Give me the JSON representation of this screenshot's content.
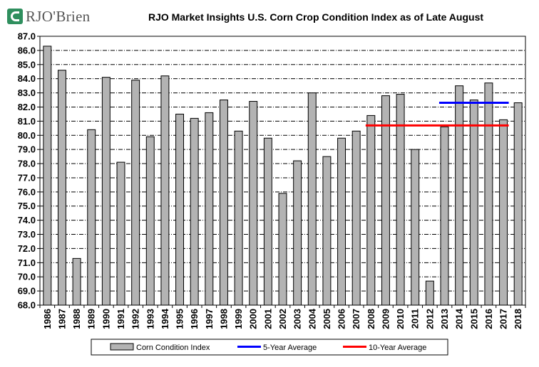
{
  "logo": {
    "text": "RJO'Brien",
    "icon": "rjo-logo-mark"
  },
  "chart_data": {
    "type": "bar",
    "title": "RJO Market Insights U.S. Corn Crop Condition Index as of Late August",
    "xlabel": "",
    "ylabel": "",
    "ylim": [
      68.0,
      87.0
    ],
    "y_ticks": [
      "68.0",
      "69.0",
      "70.0",
      "71.0",
      "72.0",
      "73.0",
      "74.0",
      "75.0",
      "76.0",
      "77.0",
      "78.0",
      "79.0",
      "80.0",
      "81.0",
      "82.0",
      "83.0",
      "84.0",
      "85.0",
      "86.0",
      "87.0"
    ],
    "categories": [
      "1986",
      "1987",
      "1988",
      "1989",
      "1990",
      "1991",
      "1992",
      "1993",
      "1994",
      "1995",
      "1996",
      "1997",
      "1998",
      "1999",
      "2000",
      "2001",
      "2002",
      "2003",
      "2004",
      "2005",
      "2006",
      "2007",
      "2008",
      "2009",
      "2010",
      "2011",
      "2012",
      "2013",
      "2014",
      "2015",
      "2016",
      "2017",
      "2018"
    ],
    "series": [
      {
        "name": "Corn Condition Index",
        "color": "#b3b3b3",
        "values": [
          86.3,
          84.6,
          71.3,
          80.4,
          84.1,
          78.1,
          83.9,
          79.9,
          84.2,
          81.5,
          81.2,
          81.6,
          82.5,
          80.3,
          82.4,
          79.8,
          75.9,
          78.2,
          83.0,
          78.5,
          79.8,
          80.3,
          81.4,
          82.8,
          82.9,
          79.0,
          69.7,
          80.6,
          83.5,
          82.5,
          83.7,
          81.1,
          82.3
        ]
      }
    ],
    "averages": [
      {
        "name": "5-Year Average",
        "color": "#0000ff",
        "value": 82.3,
        "from": "2013",
        "to": "2017"
      },
      {
        "name": "10-Year Average",
        "color": "#ff0000",
        "value": 80.7,
        "from": "2008",
        "to": "2017"
      }
    ],
    "grid": true,
    "legend": "bottom"
  }
}
